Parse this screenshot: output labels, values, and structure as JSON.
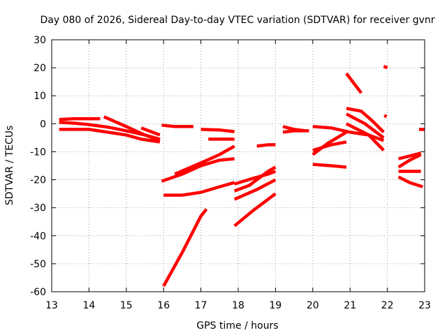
{
  "chart_data": {
    "type": "line",
    "title": "Day 080 of 2026, Sidereal Day-to-day VTEC variation (SDTVAR) for receiver gvnr",
    "xlabel": "GPS time / hours",
    "ylabel": "SDTVAR / TECUs",
    "xlim": [
      13,
      23
    ],
    "ylim": [
      -60,
      30
    ],
    "xticks": [
      13,
      14,
      15,
      16,
      17,
      18,
      19,
      20,
      21,
      22,
      23
    ],
    "yticks": [
      -60,
      -50,
      -40,
      -30,
      -20,
      -10,
      0,
      10,
      20,
      30
    ],
    "grid": true,
    "color": "#ff0000",
    "series": [
      {
        "x": [
          13.2,
          13.6,
          14.0,
          14.3
        ],
        "y": [
          1.5,
          1.8,
          1.8,
          1.8
        ]
      },
      {
        "x": [
          13.2,
          13.6,
          14.0,
          14.5,
          15.0,
          15.5,
          15.9
        ],
        "y": [
          0.5,
          0.2,
          -0.3,
          -1.2,
          -2.5,
          -4.0,
          -5.5
        ]
      },
      {
        "x": [
          13.2,
          13.6,
          14.0,
          14.5,
          15.0,
          15.4,
          15.9
        ],
        "y": [
          -2.0,
          -2.0,
          -2.0,
          -3.0,
          -4.0,
          -5.5,
          -6.5
        ]
      },
      {
        "x": [
          14.4,
          15.0,
          15.5,
          15.9
        ],
        "y": [
          2.5,
          -1.0,
          -4.0,
          -6.0
        ]
      },
      {
        "x": [
          15.4,
          15.9
        ],
        "y": [
          -1.5,
          -4.0
        ]
      },
      {
        "x": [
          15.95,
          16.3,
          16.8
        ],
        "y": [
          -0.5,
          -1.0,
          -1.0
        ]
      },
      {
        "x": [
          17.0,
          17.5,
          17.9
        ],
        "y": [
          -2.0,
          -2.2,
          -2.8
        ]
      },
      {
        "x": [
          17.2,
          17.5,
          17.9
        ],
        "y": [
          -5.5,
          -5.5,
          -5.5
        ]
      },
      {
        "x": [
          15.95,
          16.5,
          17.0,
          17.5,
          17.9
        ],
        "y": [
          -20.5,
          -18.0,
          -15.0,
          -13.0,
          -12.5
        ]
      },
      {
        "x": [
          16.3,
          17.0,
          17.5,
          17.9
        ],
        "y": [
          -18.0,
          -14.0,
          -11.0,
          -8.0
        ]
      },
      {
        "x": [
          16.0,
          16.5,
          17.0,
          17.5,
          17.9
        ],
        "y": [
          -25.5,
          -25.5,
          -24.5,
          -22.5,
          -21.0
        ]
      },
      {
        "x": [
          16.0,
          16.5,
          17.0,
          17.15
        ],
        "y": [
          -58.0,
          -46.0,
          -33.0,
          -30.5
        ]
      },
      {
        "x": [
          18.5,
          18.8,
          19.0
        ],
        "y": [
          -8.0,
          -7.5,
          -7.5
        ]
      },
      {
        "x": [
          17.9,
          18.4,
          18.8,
          19.0
        ],
        "y": [
          -21.5,
          -19.5,
          -18.0,
          -17.0
        ]
      },
      {
        "x": [
          17.9,
          18.3,
          18.8,
          19.0
        ],
        "y": [
          -24.0,
          -22.0,
          -17.0,
          -15.5
        ]
      },
      {
        "x": [
          17.9,
          18.5,
          19.0
        ],
        "y": [
          -27.0,
          -23.5,
          -20.0
        ]
      },
      {
        "x": [
          17.9,
          18.4,
          19.0
        ],
        "y": [
          -36.5,
          -31.0,
          -25.0
        ]
      },
      {
        "x": [
          19.2,
          19.5,
          19.8
        ],
        "y": [
          -1.0,
          -2.0,
          -2.5
        ]
      },
      {
        "x": [
          19.2,
          19.5,
          19.9
        ],
        "y": [
          -3.0,
          -2.5,
          -2.5
        ]
      },
      {
        "x": [
          20.0,
          20.5,
          21.0,
          21.5,
          21.9
        ],
        "y": [
          -1.0,
          -1.5,
          -3.0,
          -4.0,
          -6.0
        ]
      },
      {
        "x": [
          20.0,
          20.5,
          20.9
        ],
        "y": [
          -9.5,
          -7.5,
          -6.5
        ]
      },
      {
        "x": [
          20.0,
          20.4,
          20.9
        ],
        "y": [
          -11.0,
          -7.0,
          -3.0
        ]
      },
      {
        "x": [
          20.0,
          20.5,
          20.9
        ],
        "y": [
          -14.5,
          -15.0,
          -15.5
        ]
      },
      {
        "x": [
          20.9,
          21.3
        ],
        "y": [
          18.0,
          11.0
        ]
      },
      {
        "x": [
          20.9,
          21.3,
          21.6,
          21.9
        ],
        "y": [
          5.5,
          4.5,
          1.0,
          -3.0
        ]
      },
      {
        "x": [
          20.9,
          21.4,
          21.9
        ],
        "y": [
          3.5,
          0.0,
          -5.0
        ]
      },
      {
        "x": [
          20.9,
          21.5,
          21.9
        ],
        "y": [
          0.0,
          -4.0,
          -9.5
        ]
      },
      {
        "x": [
          21.9,
          22.0
        ],
        "y": [
          20.5,
          20.0
        ]
      },
      {
        "x": [
          21.92,
          21.98
        ],
        "y": [
          3.0,
          2.5
        ]
      },
      {
        "x": [
          22.3,
          22.9
        ],
        "y": [
          -12.5,
          -10.5
        ]
      },
      {
        "x": [
          22.3,
          22.6,
          22.9
        ],
        "y": [
          -15.5,
          -13.0,
          -11.0
        ]
      },
      {
        "x": [
          22.3,
          22.6,
          22.9
        ],
        "y": [
          -17.0,
          -17.0,
          -17.0
        ]
      },
      {
        "x": [
          22.3,
          22.6,
          22.95
        ],
        "y": [
          -19.0,
          -21.0,
          -22.5
        ]
      },
      {
        "x": [
          22.85,
          23.0
        ],
        "y": [
          -2.0,
          -2.0
        ]
      }
    ]
  }
}
